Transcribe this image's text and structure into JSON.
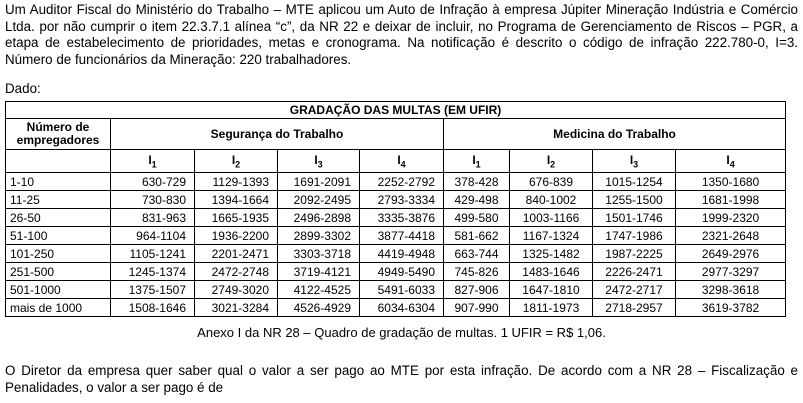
{
  "intro": "Um Auditor Fiscal do Ministério do Trabalho – MTE aplicou um Auto de Infração à empresa Júpiter Mineração Indústria e Comércio Ltda. por não cumprir o item 22.3.7.1 alínea “c”, da NR 22 e deixar de incluir, no Programa de Gerenciamento de Riscos – PGR, a etapa de estabelecimento de prioridades, metas e cronograma. Na notificação é descrito o código de infração 222.780-0, I=3. Número de funcionários da Mineração: 220 trabalhadores.",
  "dado": "Dado:",
  "table": {
    "title": "GRADAÇÃO DAS MULTAS (EM UFIR)",
    "col0": "Número de empregadores",
    "group1": "Segurança do Trabalho",
    "group2": "Medicina do Trabalho",
    "levels": [
      "1",
      "2",
      "3",
      "4"
    ],
    "rows": [
      [
        "1-10",
        "630-729",
        "1129-1393",
        "1691-2091",
        "2252-2792",
        "378-428",
        "676-839",
        "1015-1254",
        "1350-1680"
      ],
      [
        "11-25",
        "730-830",
        "1394-1664",
        "2092-2495",
        "2793-3334",
        "429-498",
        "840-1002",
        "1255-1500",
        "1681-1998"
      ],
      [
        "26-50",
        "831-963",
        "1665-1935",
        "2496-2898",
        "3335-3876",
        "499-580",
        "1003-1166",
        "1501-1746",
        "1999-2320"
      ],
      [
        "51-100",
        "964-1104",
        "1936-2200",
        "2899-3302",
        "3877-4418",
        "581-662",
        "1167-1324",
        "1747-1986",
        "2321-2648"
      ],
      [
        "101-250",
        "1105-1241",
        "2201-2471",
        "3303-3718",
        "4419-4948",
        "663-744",
        "1325-1482",
        "1987-2225",
        "2649-2976"
      ],
      [
        "251-500",
        "1245-1374",
        "2472-2748",
        "3719-4121",
        "4949-5490",
        "745-826",
        "1483-1646",
        "2226-2471",
        "2977-3297"
      ],
      [
        "501-1000",
        "1375-1507",
        "2749-3020",
        "4122-4525",
        "5491-6033",
        "827-906",
        "1647-1810",
        "2472-2717",
        "3298-3618"
      ],
      [
        "mais de 1000",
        "1508-1646",
        "3021-3284",
        "4526-4929",
        "6034-6304",
        "907-990",
        "1811-1973",
        "2718-2957",
        "3619-3782"
      ]
    ]
  },
  "caption": "Anexo I da NR 28 – Quadro de gradação de multas. 1 UFIR = R$ 1,06.",
  "question": "O Diretor da empresa quer saber qual o valor a ser pago ao MTE por esta infração. De acordo com a NR 28 – Fiscalização e Penalidades, o valor a ser pago é de"
}
